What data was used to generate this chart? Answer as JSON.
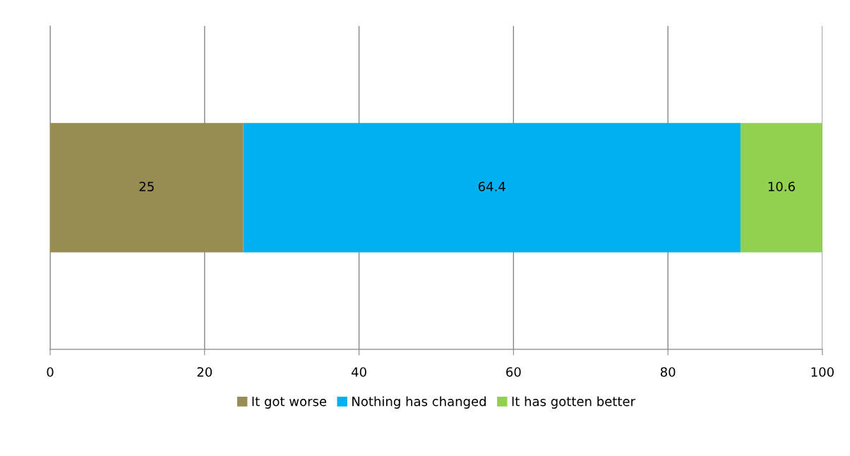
{
  "chart_data": {
    "type": "bar",
    "orientation": "horizontal",
    "stacked": true,
    "categories": [
      null
    ],
    "series": [
      {
        "name": "It got worse",
        "color": "#978c52",
        "values": [
          25
        ]
      },
      {
        "name": "Nothing has changed",
        "color": "#00b0f0",
        "values": [
          64.4
        ]
      },
      {
        "name": "It has gotten better",
        "color": "#92d050",
        "values": [
          10.6
        ]
      }
    ],
    "xlim": [
      0,
      100
    ],
    "xticks": [
      0,
      20,
      40,
      60,
      80,
      100
    ],
    "grid": "x",
    "legend": "bottom",
    "data_labels": true
  }
}
